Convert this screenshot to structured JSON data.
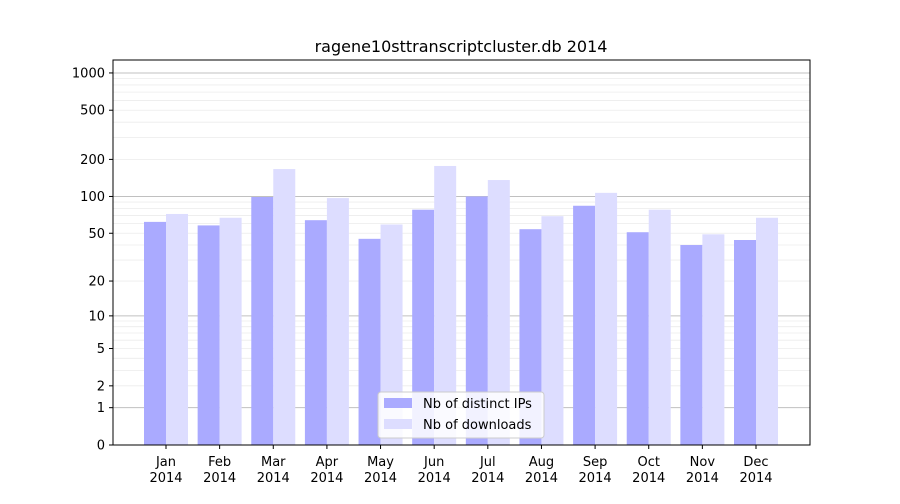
{
  "chart_data": {
    "type": "bar",
    "title": "ragene10sttranscriptcluster.db 2014",
    "xlabel": "",
    "ylabel": "",
    "yscale": "log(1+y)",
    "ylim": [
      0,
      1270
    ],
    "yticks": [
      0,
      1,
      2,
      5,
      10,
      20,
      50,
      100,
      200,
      500,
      1000
    ],
    "grid": true,
    "legend_position": "bottom-center",
    "categories": [
      "Jan\n2014",
      "Feb\n2014",
      "Mar\n2014",
      "Apr\n2014",
      "May\n2014",
      "Jun\n2014",
      "Jul\n2014",
      "Aug\n2014",
      "Sep\n2014",
      "Oct\n2014",
      "Nov\n2014",
      "Dec\n2014"
    ],
    "series": [
      {
        "name": "Nb of distinct IPs",
        "color": "#aaaaff",
        "values": [
          62,
          58,
          99,
          64,
          45,
          78,
          100,
          54,
          84,
          51,
          40,
          44
        ]
      },
      {
        "name": "Nb of downloads",
        "color": "#ddddff",
        "values": [
          72,
          67,
          167,
          97,
          59,
          177,
          136,
          69,
          107,
          78,
          49,
          67
        ]
      }
    ]
  }
}
